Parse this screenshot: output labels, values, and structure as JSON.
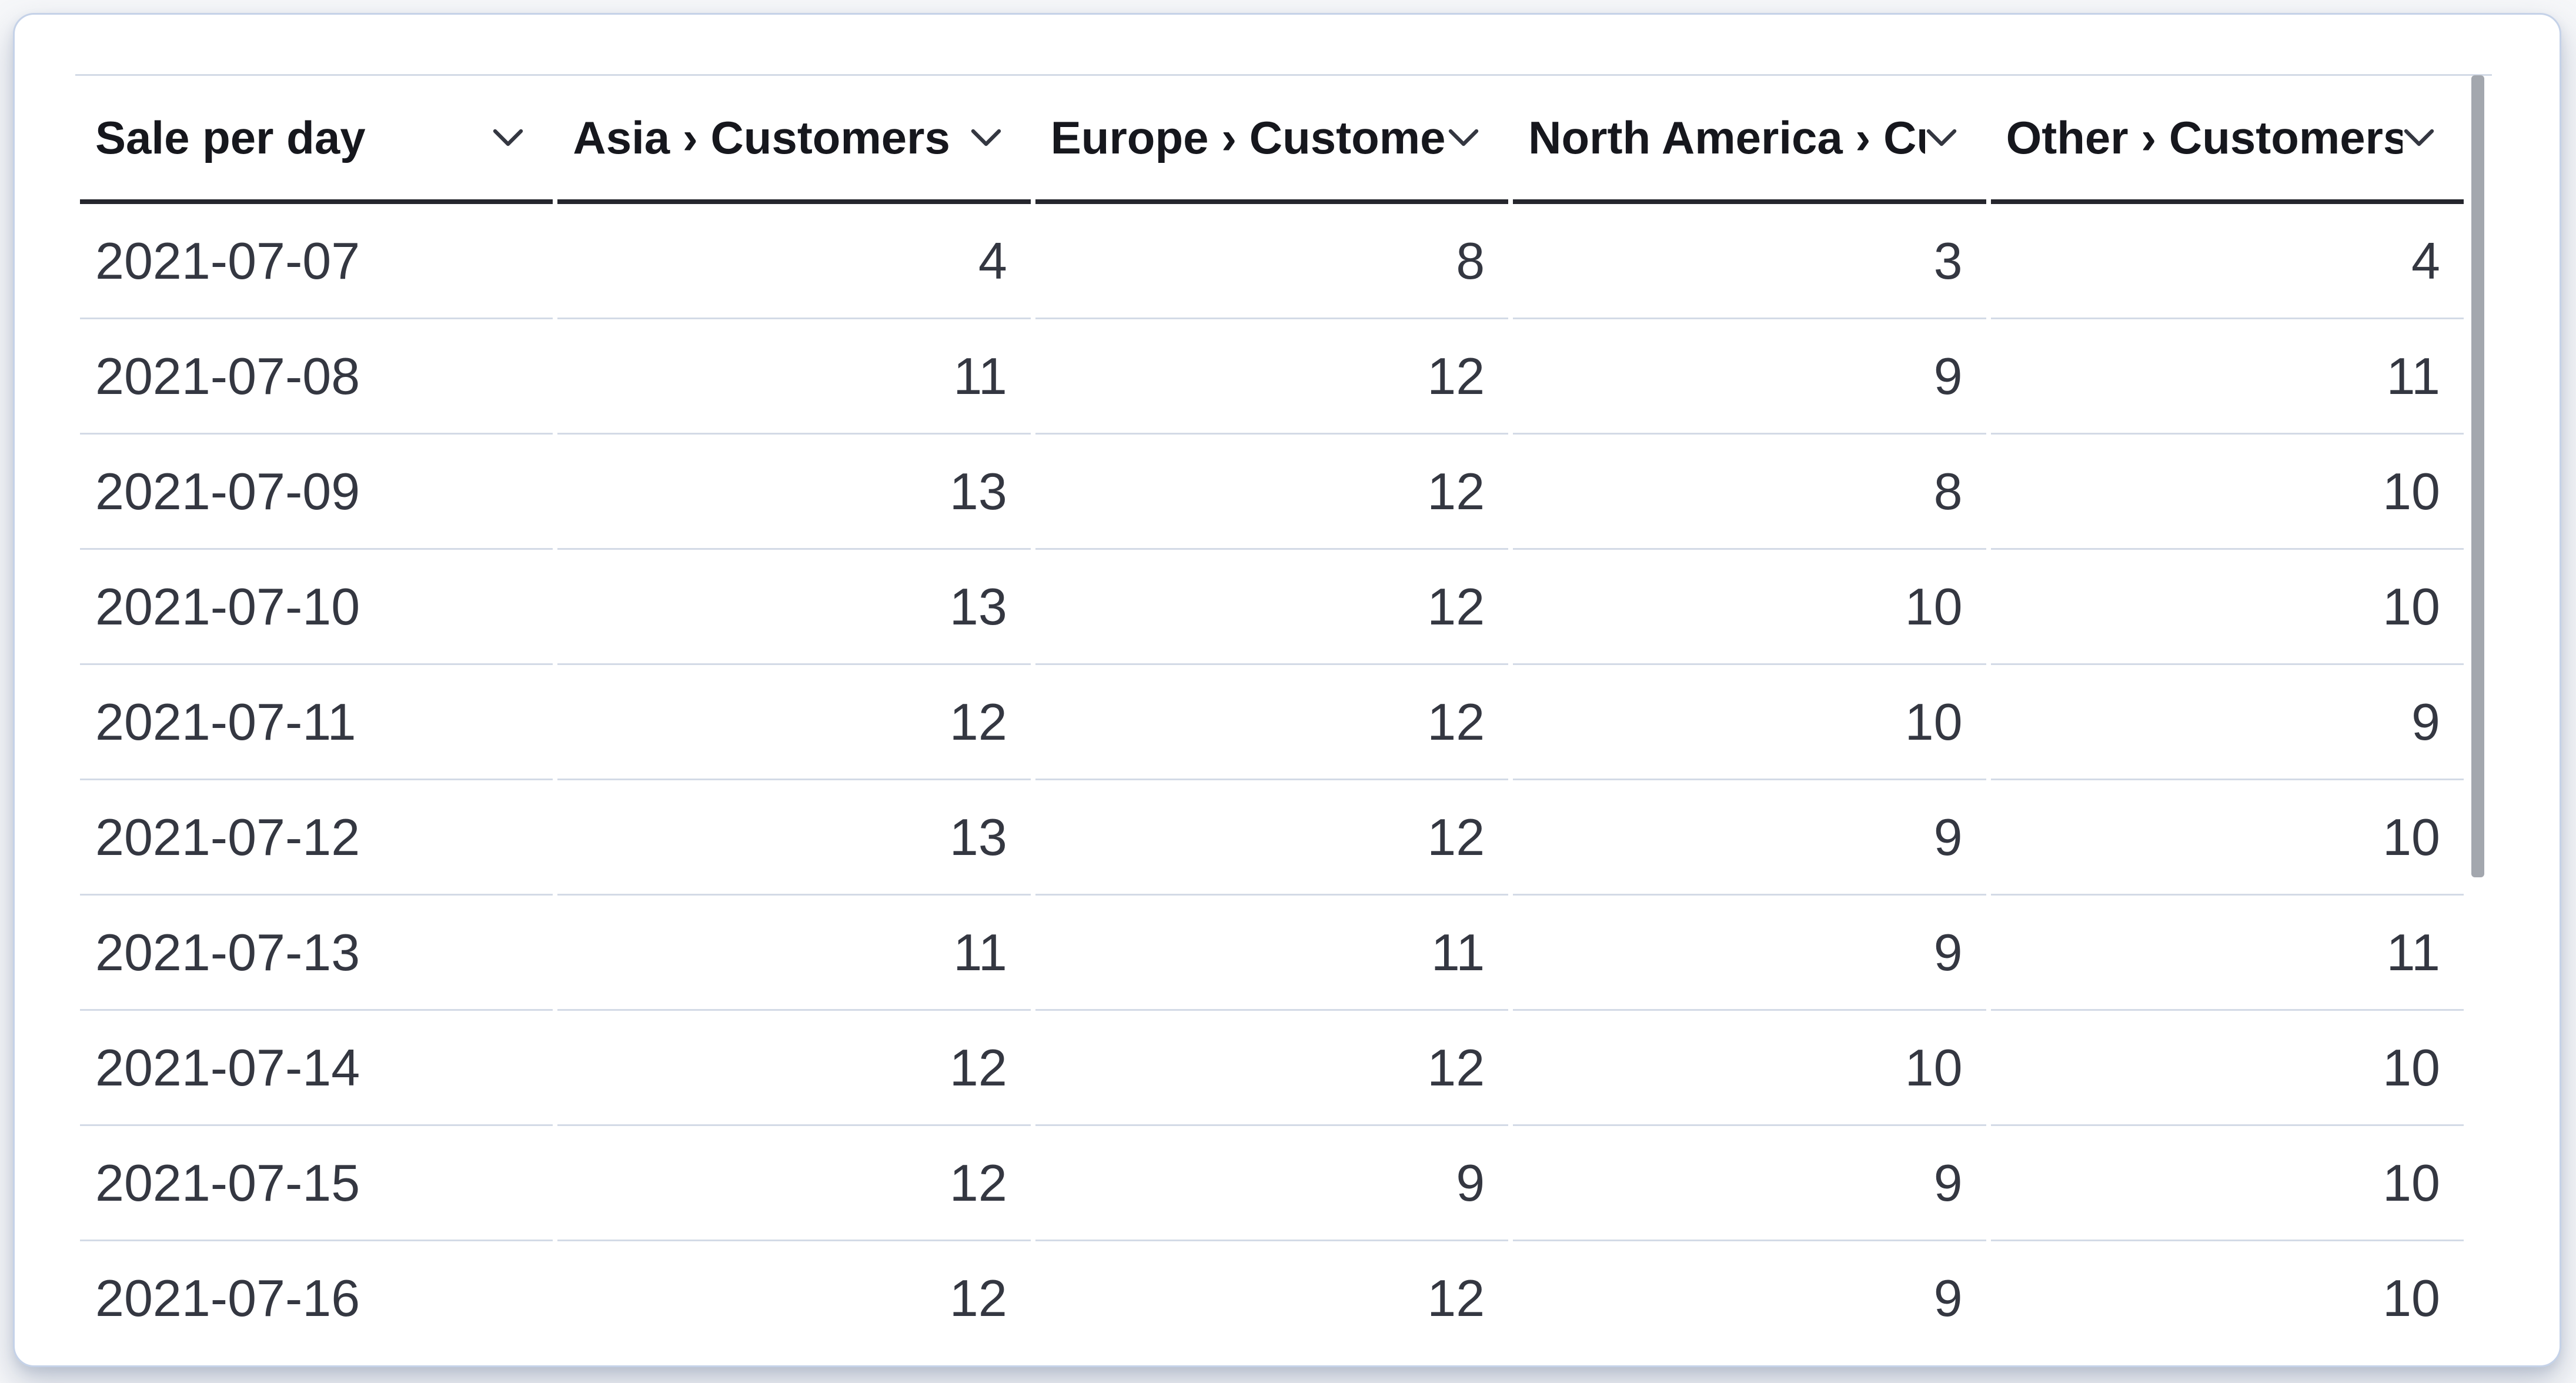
{
  "table": {
    "title": "Sale per day",
    "columns": [
      {
        "id": "sale-per-day",
        "label": "Sale per day",
        "align": "left",
        "sortable": true
      },
      {
        "id": "asia-customers",
        "label": "Asia › Customers",
        "align": "right",
        "sortable": true
      },
      {
        "id": "europe-customers",
        "label": "Europe › Customers",
        "align": "right",
        "sortable": true
      },
      {
        "id": "north-america-customers",
        "label": "North America › Customers",
        "align": "right",
        "sortable": true
      },
      {
        "id": "other-customers",
        "label": "Other › Customers",
        "align": "right",
        "sortable": true
      }
    ],
    "rows": [
      [
        "2021-07-07",
        "4",
        "8",
        "3",
        "4"
      ],
      [
        "2021-07-08",
        "11",
        "12",
        "9",
        "11"
      ],
      [
        "2021-07-09",
        "13",
        "12",
        "8",
        "10"
      ],
      [
        "2021-07-10",
        "13",
        "12",
        "10",
        "10"
      ],
      [
        "2021-07-11",
        "12",
        "12",
        "10",
        "9"
      ],
      [
        "2021-07-12",
        "13",
        "12",
        "9",
        "10"
      ],
      [
        "2021-07-13",
        "11",
        "11",
        "9",
        "11"
      ],
      [
        "2021-07-14",
        "12",
        "12",
        "10",
        "10"
      ],
      [
        "2021-07-15",
        "12",
        "9",
        "9",
        "10"
      ],
      [
        "2021-07-16",
        "12",
        "12",
        "9",
        "10"
      ]
    ]
  },
  "icons": {
    "header_sort": "chevron-down"
  },
  "scrollbar": {
    "orientation": "vertical",
    "visible": true
  },
  "colors": {
    "header_text": "#16171d",
    "body_text": "#343741",
    "header_underline": "#25262d",
    "row_divider": "#d3dae6",
    "card_border": "#c5d2e8",
    "card_background": "#ffffff",
    "scrollbar_thumb": "#a3a7ae",
    "page_background": "#f6f7f9"
  }
}
